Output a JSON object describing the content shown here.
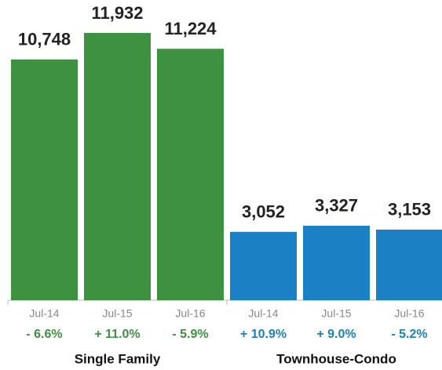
{
  "chart_data": {
    "type": "bar",
    "groups": [
      {
        "name": "Single Family",
        "color": "#3d9140",
        "categories": [
          "Jul-14",
          "Jul-15",
          "Jul-16"
        ],
        "values": [
          10748,
          11932,
          11224
        ],
        "value_labels": [
          "10,748",
          "11,932",
          "11,224"
        ],
        "changes": [
          "- 6.6%",
          "+ 11.0%",
          "- 5.9%"
        ]
      },
      {
        "name": "Townhouse-Condo",
        "color": "#1b80c4",
        "categories": [
          "Jul-14",
          "Jul-15",
          "Jul-16"
        ],
        "values": [
          3052,
          3327,
          3153
        ],
        "value_labels": [
          "3,052",
          "3,327",
          "3,153"
        ],
        "changes": [
          "+ 10.9%",
          "+ 9.0%",
          "- 5.2%"
        ]
      }
    ]
  }
}
